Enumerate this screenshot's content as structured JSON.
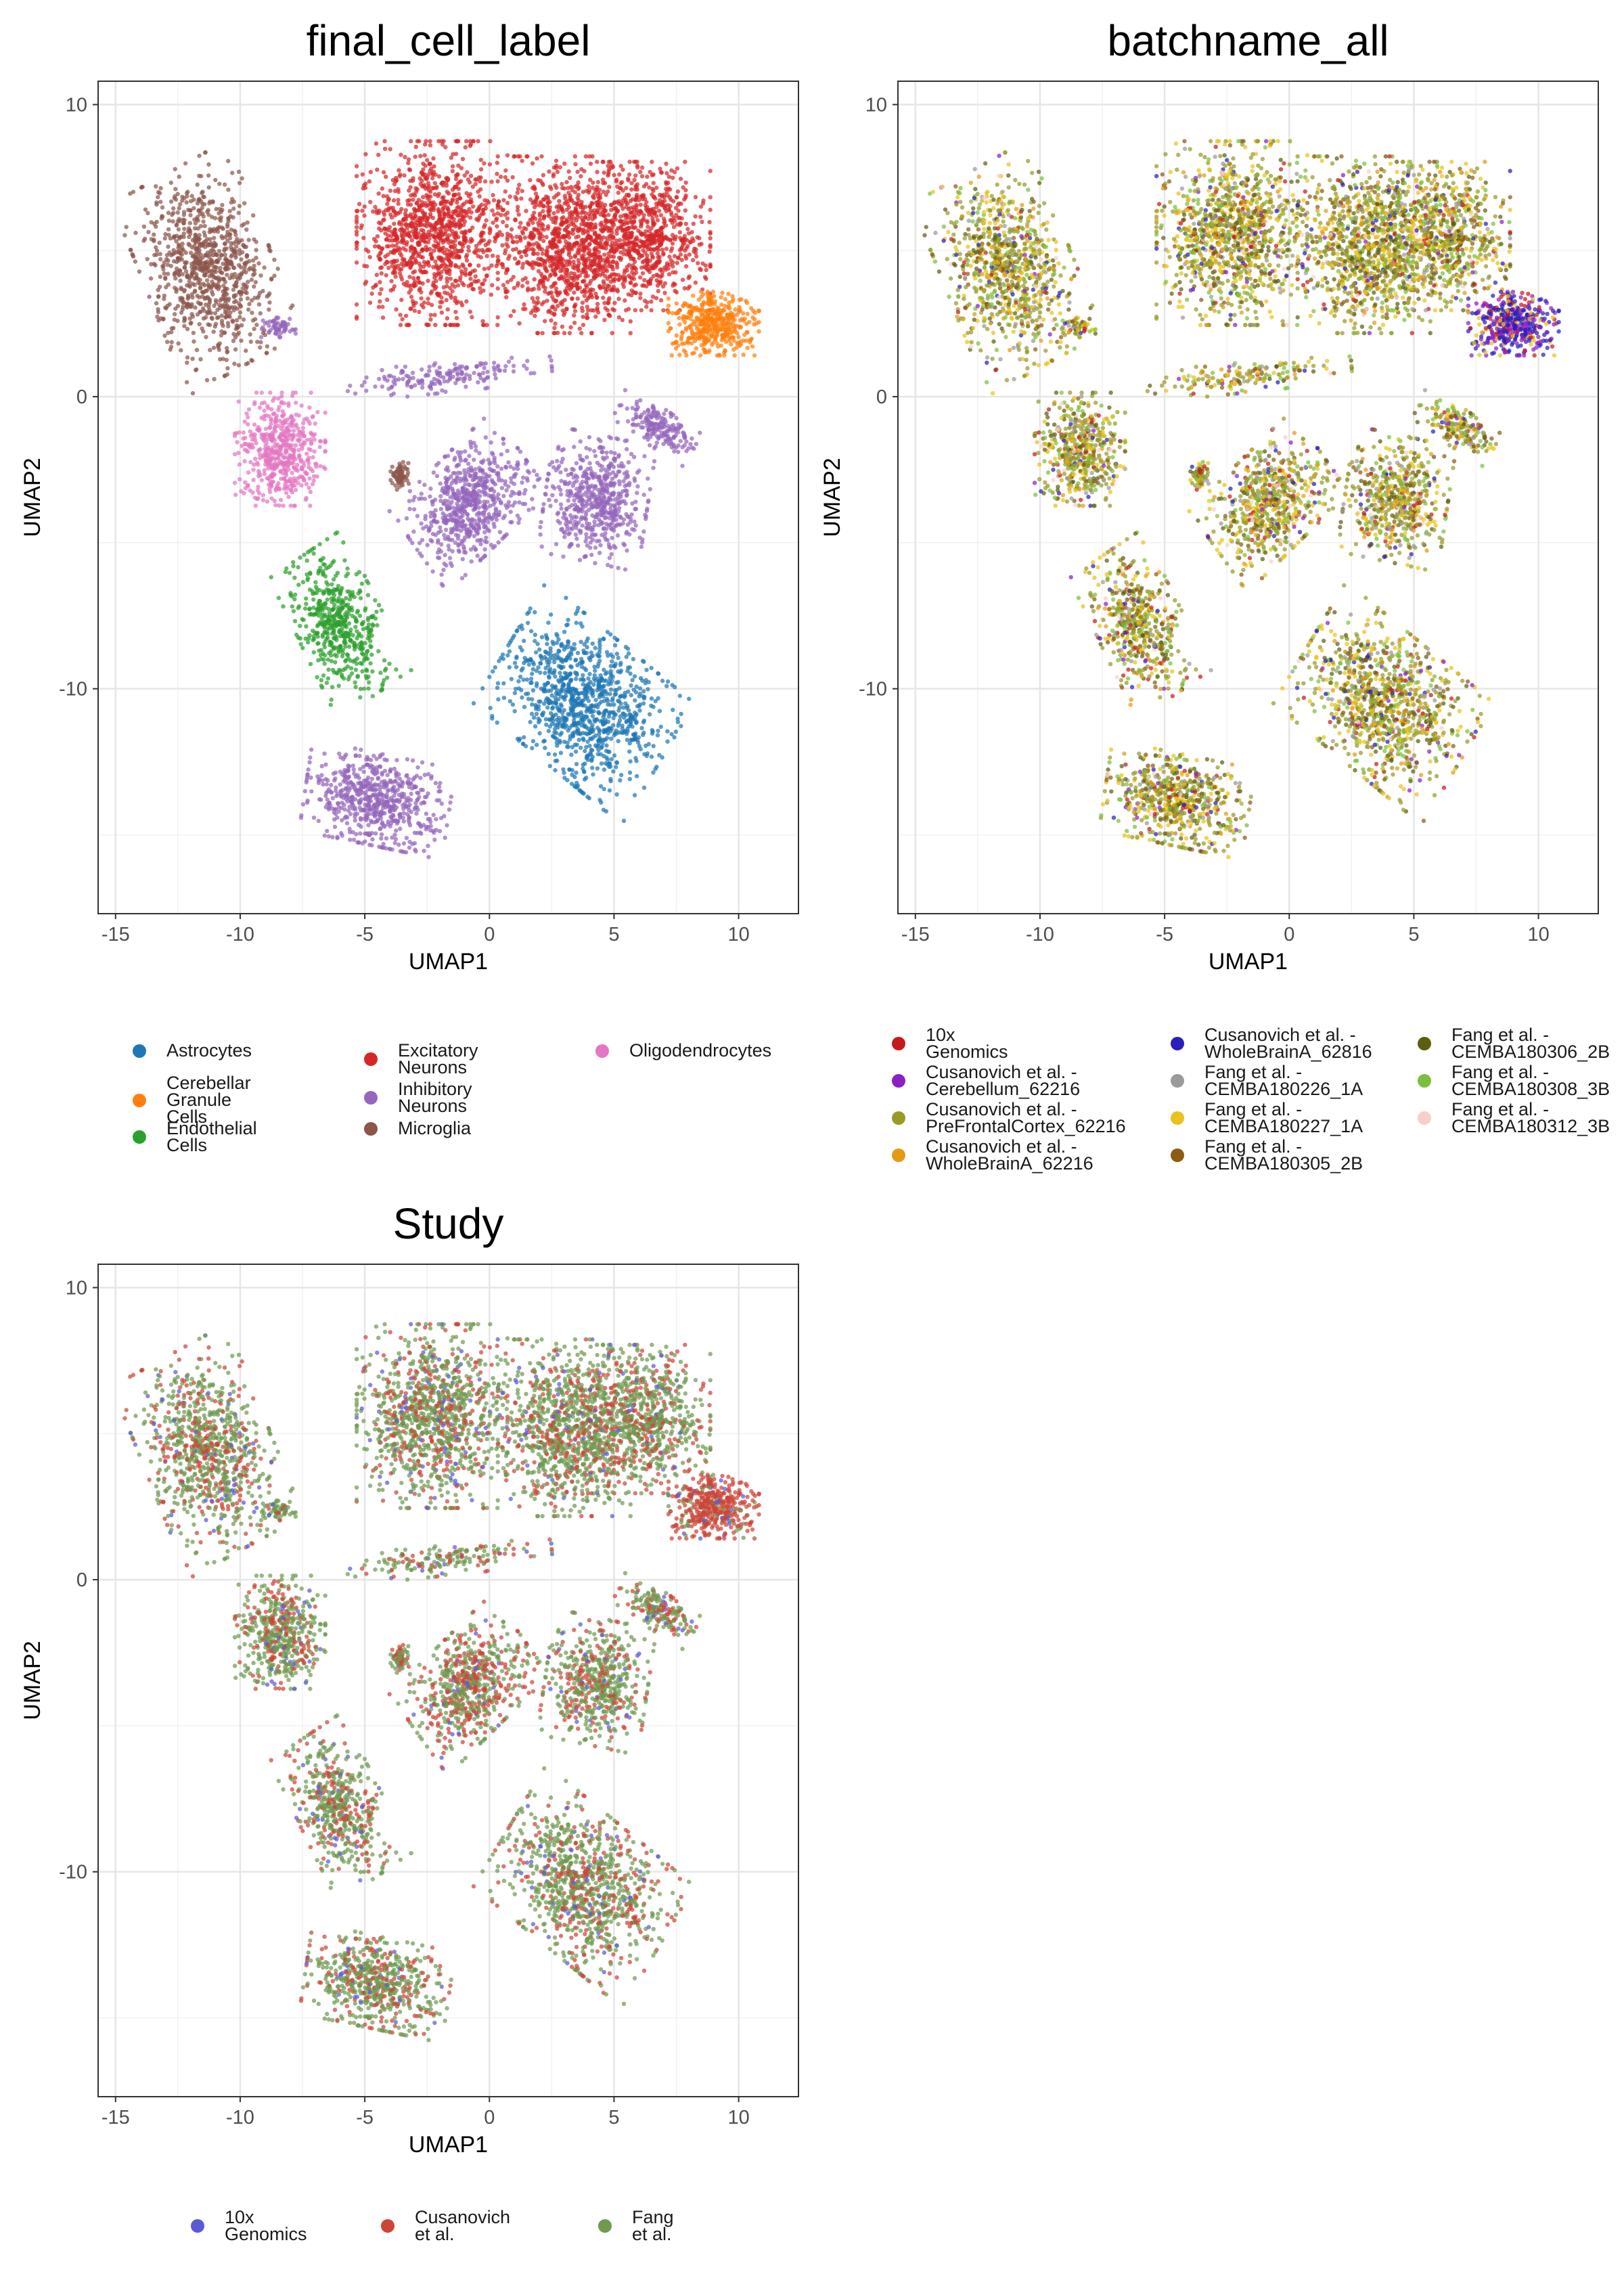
{
  "chart_data": [
    {
      "type": "scatter",
      "title": "final_cell_label",
      "xlabel": "UMAP1",
      "ylabel": "UMAP2",
      "xlim": [
        -15.7,
        12.4
      ],
      "ylim": [
        -17.7,
        10.8
      ],
      "xticks": [
        -15,
        -10,
        -5,
        0,
        5,
        10
      ],
      "yticks": [
        -10,
        0,
        10
      ],
      "xtick_labels": [
        "-15",
        "-10",
        "-5",
        "0",
        "5",
        "10"
      ],
      "ytick_labels": [
        "-10",
        "0",
        "10"
      ],
      "grid": true,
      "legend_position": "bottom",
      "series": [
        {
          "name": "Astrocytes",
          "color": "#1f77b4"
        },
        {
          "name": "Cerebellar Granule\nCells",
          "color": "#ff7f0e"
        },
        {
          "name": "Endothelial Cells",
          "color": "#2ca02c"
        },
        {
          "name": "Excitatory Neurons",
          "color": "#d62728"
        },
        {
          "name": "Inhibitory Neurons",
          "color": "#9467bd"
        },
        {
          "name": "Microglia",
          "color": "#8c564b"
        },
        {
          "name": "Oligodendrocytes",
          "color": "#e377c2"
        }
      ]
    },
    {
      "type": "scatter",
      "title": "batchname_all",
      "xlabel": "UMAP1",
      "ylabel": "UMAP2",
      "xlim": [
        -15.7,
        12.4
      ],
      "ylim": [
        -17.7,
        10.8
      ],
      "xticks": [
        -15,
        -10,
        -5,
        0,
        5,
        10
      ],
      "yticks": [
        -10,
        0,
        10
      ],
      "xtick_labels": [
        "-15",
        "-10",
        "-5",
        "0",
        "5",
        "10"
      ],
      "ytick_labels": [
        "-10",
        "0",
        "10"
      ],
      "grid": true,
      "legend_position": "bottom",
      "series": [
        {
          "name": "10x Genomics",
          "color": "#c8191a"
        },
        {
          "name": "Cusanovich et al. -\nCerebellum_62216",
          "color": "#8b1fc4"
        },
        {
          "name": "Cusanovich et al. -\nPreFrontalCortex_62216",
          "color": "#999a2a"
        },
        {
          "name": "Cusanovich et al. -\nWholeBrainA_62216",
          "color": "#e59a16"
        },
        {
          "name": "Cusanovich et al. -\nWholeBrainA_62816",
          "color": "#2a1fb8"
        },
        {
          "name": "Fang et al. -\nCEMBA180226_1A",
          "color": "#9a9a9a"
        },
        {
          "name": "Fang et al. -\nCEMBA180227_1A",
          "color": "#e9c21c"
        },
        {
          "name": "Fang et al. -\nCEMBA180305_2B",
          "color": "#8e5a14"
        },
        {
          "name": "Fang et al. -\nCEMBA180306_2B",
          "color": "#5e5e10"
        },
        {
          "name": "Fang et al. -\nCEMBA180308_3B",
          "color": "#7ac03c"
        },
        {
          "name": "Fang et al. -\nCEMBA180312_3B",
          "color": "#f6cfca"
        }
      ]
    },
    {
      "type": "scatter",
      "title": "Study",
      "xlabel": "UMAP1",
      "ylabel": "UMAP2",
      "xlim": [
        -15.7,
        12.4
      ],
      "ylim": [
        -17.7,
        10.8
      ],
      "xticks": [
        -15,
        -10,
        -5,
        0,
        5,
        10
      ],
      "yticks": [
        -10,
        0,
        10
      ],
      "xtick_labels": [
        "-15",
        "-10",
        "-5",
        "0",
        "5",
        "10"
      ],
      "ytick_labels": [
        "-10",
        "0",
        "10"
      ],
      "grid": true,
      "legend_position": "bottom",
      "series": [
        {
          "name": "10x Genomics",
          "color": "#5a5ad6"
        },
        {
          "name": "Cusanovich et al.",
          "color": "#cc4537"
        },
        {
          "name": "Fang et al.",
          "color": "#6f9a50"
        }
      ]
    }
  ],
  "clusters": [
    {
      "cx": -11.3,
      "cy": 4.4,
      "sx": 2.1,
      "sy": 3.0,
      "rot": 25,
      "n": 900,
      "type": "Microglia",
      "mix": "a"
    },
    {
      "cx": -8.4,
      "cy": -1.8,
      "sx": 1.5,
      "sy": 1.6,
      "rot": 0,
      "n": 520,
      "type": "Oligodendrocytes",
      "mix": "a"
    },
    {
      "cx": -6.0,
      "cy": -7.8,
      "sx": 1.4,
      "sy": 2.3,
      "rot": 30,
      "n": 520,
      "type": "Endothelial Cells",
      "mix": "a"
    },
    {
      "cx": -4.5,
      "cy": -13.8,
      "sx": 2.4,
      "sy": 1.3,
      "rot": -10,
      "n": 620,
      "type": "Inhibitory Neurons",
      "mix": "a"
    },
    {
      "cx": -2.3,
      "cy": 5.6,
      "sx": 2.5,
      "sy": 2.6,
      "rot": 0,
      "n": 1100,
      "type": "Excitatory Neurons",
      "mix": "a"
    },
    {
      "cx": 3.0,
      "cy": 5.2,
      "sx": 2.2,
      "sy": 2.5,
      "rot": 0,
      "n": 950,
      "type": "Excitatory Neurons",
      "mix": "a"
    },
    {
      "cx": 6.2,
      "cy": 5.5,
      "sx": 2.2,
      "sy": 2.1,
      "rot": 0,
      "n": 800,
      "type": "Excitatory Neurons",
      "mix": "a"
    },
    {
      "cx": 9.0,
      "cy": 2.5,
      "sx": 1.5,
      "sy": 0.9,
      "rot": 0,
      "n": 420,
      "type": "Cerebellar Granule\nCells",
      "mix": "b"
    },
    {
      "cx": -0.8,
      "cy": -3.6,
      "sx": 2.2,
      "sy": 1.5,
      "rot": 40,
      "n": 650,
      "type": "Inhibitory Neurons",
      "mix": "c"
    },
    {
      "cx": 4.3,
      "cy": -3.5,
      "sx": 1.7,
      "sy": 1.8,
      "rot": -10,
      "n": 560,
      "type": "Inhibitory Neurons",
      "mix": "a"
    },
    {
      "cx": 3.8,
      "cy": -10.5,
      "sx": 3.0,
      "sy": 2.1,
      "rot": -35,
      "n": 1000,
      "type": "Astrocytes",
      "mix": "a"
    },
    {
      "cx": 6.7,
      "cy": -1.0,
      "sx": 1.4,
      "sy": 0.55,
      "rot": -30,
      "n": 180,
      "type": "Inhibitory Neurons",
      "mix": "a"
    },
    {
      "cx": -3.6,
      "cy": -2.7,
      "sx": 0.3,
      "sy": 0.4,
      "rot": 0,
      "n": 70,
      "type": "Microglia",
      "mix": "a"
    },
    {
      "cx": -1.6,
      "cy": 0.7,
      "sx": 3.4,
      "sy": 0.45,
      "rot": 5,
      "n": 170,
      "type": "Inhibitory Neurons",
      "mix": "a"
    },
    {
      "cx": -8.5,
      "cy": 2.4,
      "sx": 0.6,
      "sy": 0.3,
      "rot": 0,
      "n": 60,
      "type": "Inhibitory Neurons",
      "mix": "a"
    }
  ],
  "legend": {
    "final_cell_label": [
      {
        "label": "Astrocytes",
        "color": "#1f77b4"
      },
      {
        "label": "Cerebellar Granule\nCells",
        "color": "#ff7f0e"
      },
      {
        "label": "Endothelial Cells",
        "color": "#2ca02c"
      },
      {
        "label": "Excitatory Neurons",
        "color": "#d62728"
      },
      {
        "label": "Inhibitory Neurons",
        "color": "#9467bd"
      },
      {
        "label": "Microglia",
        "color": "#8c564b"
      },
      {
        "label": "Oligodendrocytes",
        "color": "#e377c2"
      }
    ],
    "batchname_all": [
      {
        "label": "10x Genomics",
        "color": "#c8191a"
      },
      {
        "label": "Cusanovich et al. -\nCerebellum_62216",
        "color": "#8b1fc4"
      },
      {
        "label": "Cusanovich et al. -\nPreFrontalCortex_62216",
        "color": "#999a2a"
      },
      {
        "label": "Cusanovich et al. -\nWholeBrainA_62216",
        "color": "#e59a16"
      },
      {
        "label": "Cusanovich et al. -\nWholeBrainA_62816",
        "color": "#2a1fb8"
      },
      {
        "label": "Fang et al. -\nCEMBA180226_1A",
        "color": "#9a9a9a"
      },
      {
        "label": "Fang et al. -\nCEMBA180227_1A",
        "color": "#e9c21c"
      },
      {
        "label": "Fang et al. -\nCEMBA180305_2B",
        "color": "#8e5a14"
      },
      {
        "label": "Fang et al. -\nCEMBA180306_2B",
        "color": "#5e5e10"
      },
      {
        "label": "Fang et al. -\nCEMBA180308_3B",
        "color": "#7ac03c"
      },
      {
        "label": "Fang et al. -\nCEMBA180312_3B",
        "color": "#f6cfca"
      }
    ],
    "Study": [
      {
        "label": "10x Genomics",
        "color": "#5a5ad6"
      },
      {
        "label": "Cusanovich et al.",
        "color": "#cc4537"
      },
      {
        "label": "Fang et al.",
        "color": "#6f9a50"
      }
    ]
  }
}
